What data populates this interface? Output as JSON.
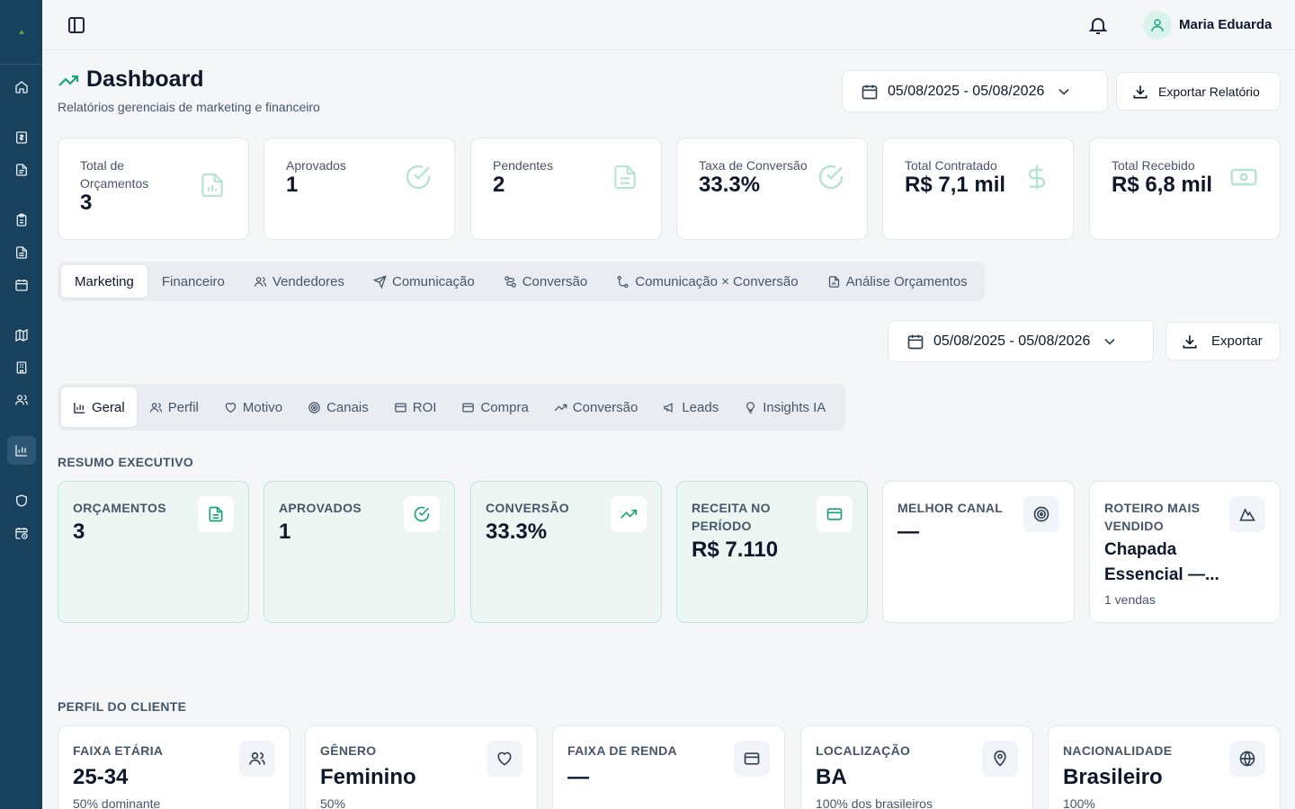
{
  "user": {
    "name": "Maria Eduarda"
  },
  "header": {
    "title": "Dashboard",
    "subtitle": "Relatórios gerenciais de marketing e financeiro",
    "date_range": "05/08/2025 - 05/08/2026",
    "export_label": "Exportar Relatório"
  },
  "kpis": [
    {
      "label": "Total de Orçamentos",
      "value": "3",
      "icon": "file-chart-icon"
    },
    {
      "label": "Aprovados",
      "value": "1",
      "icon": "check-circle-icon"
    },
    {
      "label": "Pendentes",
      "value": "2",
      "icon": "file-text-icon"
    },
    {
      "label": "Taxa de Conversão",
      "value": "33.3%",
      "icon": "check-circle-icon"
    },
    {
      "label": "Total Contratado",
      "value": "R$ 7,1 mil",
      "icon": "dollar-icon"
    },
    {
      "label": "Total Recebido",
      "value": "R$ 6,8 mil",
      "icon": "banknote-icon"
    }
  ],
  "main_tabs": [
    {
      "label": "Marketing",
      "active": true
    },
    {
      "label": "Financeiro"
    },
    {
      "label": "Vendedores",
      "icon": "users-icon"
    },
    {
      "label": "Comunicação",
      "icon": "send-icon"
    },
    {
      "label": "Conversão",
      "icon": "route-icon"
    },
    {
      "label": "Comunicação × Conversão",
      "icon": "route-icon"
    },
    {
      "label": "Análise Orçamentos",
      "icon": "file-chart-icon"
    }
  ],
  "marketing": {
    "date_range": "05/08/2025 - 05/08/2026",
    "export_label": "Exportar"
  },
  "sub_tabs": [
    {
      "label": "Geral",
      "icon": "bar-chart-icon",
      "active": true
    },
    {
      "label": "Perfil",
      "icon": "users-icon"
    },
    {
      "label": "Motivo",
      "icon": "heart-icon"
    },
    {
      "label": "Canais",
      "icon": "target-icon"
    },
    {
      "label": "ROI",
      "icon": "credit-card-icon"
    },
    {
      "label": "Compra",
      "icon": "credit-card-icon"
    },
    {
      "label": "Conversão",
      "icon": "trending-up-icon"
    },
    {
      "label": "Leads",
      "icon": "megaphone-icon"
    },
    {
      "label": "Insights IA",
      "icon": "lightbulb-icon"
    }
  ],
  "executive_summary": {
    "title": "RESUMO EXECUTIVO",
    "cards": [
      {
        "label": "ORÇAMENTOS",
        "value": "3"
      },
      {
        "label": "APROVADOS",
        "value": "1"
      },
      {
        "label": "CONVERSÃO",
        "value": "33.3%"
      },
      {
        "label": "RECEITA NO PERÍODO",
        "value": "R$ 7.110"
      },
      {
        "label": "MELHOR CANAL",
        "value": "—"
      },
      {
        "label": "ROTEIRO MAIS VENDIDO",
        "value": "Chapada Essencial —...",
        "foot": "1 vendas"
      }
    ]
  },
  "customer_profile": {
    "title": "PERFIL DO CLIENTE",
    "cards": [
      {
        "label": "FAIXA ETÁRIA",
        "value": "25-34",
        "foot": "50% dominante",
        "icon": "users-icon"
      },
      {
        "label": "GÊNERO",
        "value": "Feminino",
        "foot": "50%",
        "icon": "heart-icon"
      },
      {
        "label": "FAIXA DE RENDA",
        "value": "—",
        "foot": "",
        "icon": "credit-card-icon"
      },
      {
        "label": "LOCALIZAÇÃO",
        "value": "BA",
        "foot": "100% dos brasileiros",
        "icon": "map-pin-icon"
      },
      {
        "label": "NACIONALIDADE",
        "value": "Brasileiro",
        "foot": "100%",
        "icon": "globe-icon"
      }
    ]
  },
  "colors": {
    "sidebar": "#17415c",
    "accent": "#1aa37a",
    "card_tint": "#edf6f3"
  }
}
